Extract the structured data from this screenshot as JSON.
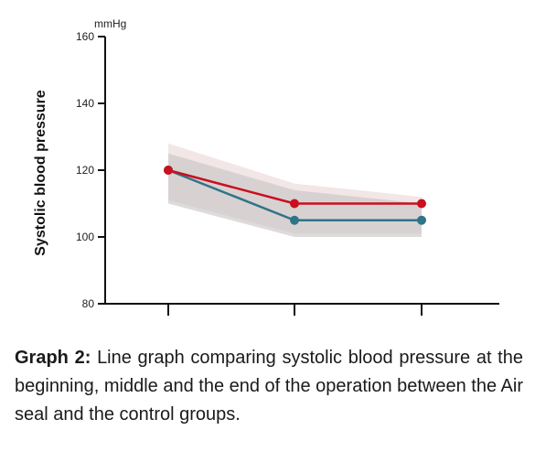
{
  "chart_data": {
    "type": "line",
    "title": "",
    "xlabel": "",
    "ylabel": "Systolic blood pressure",
    "yunit": "mmHg",
    "ylim": [
      80,
      160
    ],
    "yticks": [
      "80",
      "100",
      "120",
      "140",
      "160"
    ],
    "categories": [
      "",
      "",
      ""
    ],
    "grid": false,
    "legend": "none",
    "series": [
      {
        "values": [
          120,
          110,
          110
        ],
        "color": "#c8101e",
        "band_lower": [
          111,
          101,
          101
        ],
        "band_upper": [
          128,
          116,
          112
        ],
        "band_color": "#ead6d6"
      },
      {
        "values": [
          120,
          105,
          105
        ],
        "color": "#2f7487",
        "band_lower": [
          110,
          100,
          100
        ],
        "band_upper": [
          125,
          114,
          110
        ],
        "band_color": "#c7c3c5"
      }
    ]
  },
  "caption": {
    "label": "Graph 2:",
    "text": "Line graph comparing systolic blood pressure at the beginning, middle and the end of the operation between the Air seal and the control groups."
  }
}
